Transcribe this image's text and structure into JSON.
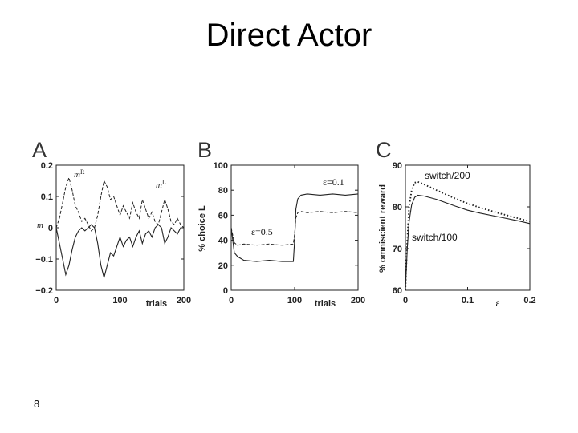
{
  "slide": {
    "title": "Direct Actor",
    "page_number": "8"
  },
  "chart_data": [
    {
      "panel": "A",
      "type": "line",
      "xlabel": "trials",
      "ylabel": "m",
      "xlim": [
        0,
        200
      ],
      "ylim": [
        -0.2,
        0.2
      ],
      "xticks": [
        "0",
        "100",
        "200"
      ],
      "yticks": [
        "0.2",
        "0.1",
        "0",
        "−0.1",
        "−0.2"
      ],
      "grid": false,
      "legend": "none",
      "series": [
        {
          "name": "m^R",
          "style": "dashed",
          "x": [
            0,
            5,
            10,
            15,
            20,
            25,
            30,
            35,
            40,
            45,
            50,
            55,
            60,
            65,
            70,
            75,
            80,
            85,
            90,
            95,
            100,
            105,
            110,
            115,
            120,
            125,
            130,
            135,
            140,
            145,
            150,
            155,
            160,
            165,
            170,
            175,
            180,
            185,
            190,
            195,
            200
          ],
          "y": [
            0.0,
            0.03,
            0.08,
            0.13,
            0.16,
            0.12,
            0.07,
            0.05,
            0.02,
            0.03,
            0.01,
            -0.01,
            0.0,
            0.04,
            0.1,
            0.15,
            0.13,
            0.09,
            0.1,
            0.07,
            0.04,
            0.07,
            0.05,
            0.03,
            0.08,
            0.05,
            0.03,
            0.09,
            0.06,
            0.03,
            0.05,
            0.02,
            0.01,
            0.05,
            0.09,
            0.06,
            0.02,
            0.01,
            0.03,
            0.01,
            0.0
          ]
        },
        {
          "name": "m^L",
          "style": "solid",
          "x": [
            0,
            5,
            10,
            15,
            20,
            25,
            30,
            35,
            40,
            45,
            50,
            55,
            60,
            65,
            70,
            75,
            80,
            85,
            90,
            95,
            100,
            105,
            110,
            115,
            120,
            125,
            130,
            135,
            140,
            145,
            150,
            155,
            160,
            165,
            170,
            175,
            180,
            185,
            190,
            195,
            200
          ],
          "y": [
            0.0,
            -0.05,
            -0.1,
            -0.15,
            -0.12,
            -0.07,
            -0.03,
            -0.01,
            0.0,
            -0.01,
            0.0,
            0.01,
            0.0,
            -0.05,
            -0.12,
            -0.16,
            -0.12,
            -0.08,
            -0.09,
            -0.06,
            -0.03,
            -0.06,
            -0.04,
            -0.03,
            -0.06,
            -0.03,
            -0.01,
            -0.05,
            -0.02,
            -0.01,
            -0.03,
            0.0,
            0.01,
            0.0,
            -0.05,
            -0.03,
            0.0,
            -0.01,
            -0.02,
            0.0,
            0.0
          ]
        }
      ]
    },
    {
      "panel": "B",
      "type": "line",
      "xlabel": "trials",
      "ylabel": "% choice L",
      "xlim": [
        0,
        200
      ],
      "ylim": [
        0,
        100
      ],
      "xticks": [
        "0",
        "100",
        "200"
      ],
      "yticks": [
        "100",
        "80",
        "60",
        "40",
        "20",
        "0"
      ],
      "grid": false,
      "legend": "none",
      "series": [
        {
          "name": "ε=0.5",
          "style": "dashed",
          "x": [
            0,
            5,
            10,
            20,
            40,
            60,
            80,
            98,
            100,
            102,
            105,
            110,
            120,
            140,
            160,
            180,
            200
          ],
          "y": [
            50,
            38,
            36,
            37,
            36,
            37,
            36,
            37,
            45,
            58,
            62,
            63,
            62,
            63,
            62,
            63,
            62
          ]
        },
        {
          "name": "ε=0.1",
          "style": "solid",
          "x": [
            0,
            5,
            10,
            20,
            40,
            60,
            80,
            98,
            100,
            102,
            105,
            110,
            120,
            140,
            160,
            180,
            200
          ],
          "y": [
            50,
            30,
            27,
            24,
            23,
            24,
            23,
            23,
            40,
            65,
            73,
            76,
            77,
            76,
            77,
            76,
            77
          ]
        }
      ]
    },
    {
      "panel": "C",
      "type": "line",
      "xlabel": "ε",
      "ylabel": "% omniscient reward",
      "xlim": [
        0,
        0.2
      ],
      "ylim": [
        60,
        90
      ],
      "xticks": [
        "0",
        "0.1",
        "0.2"
      ],
      "yticks": [
        "90",
        "80",
        "70",
        "60"
      ],
      "grid": false,
      "legend": "none",
      "series": [
        {
          "name": "switch/200",
          "style": "dotted",
          "x": [
            0,
            0.003,
            0.006,
            0.01,
            0.015,
            0.02,
            0.03,
            0.05,
            0.08,
            0.1,
            0.12,
            0.15,
            0.18,
            0.2
          ],
          "y": [
            60,
            72,
            80,
            84,
            85.8,
            86,
            85.4,
            84,
            82,
            80.8,
            79.8,
            78.5,
            77.3,
            76.5
          ]
        },
        {
          "name": "switch/100",
          "style": "solid",
          "x": [
            0,
            0.003,
            0.006,
            0.01,
            0.015,
            0.02,
            0.03,
            0.05,
            0.08,
            0.1,
            0.12,
            0.15,
            0.18,
            0.2
          ],
          "y": [
            60,
            70,
            76.5,
            80.5,
            82.3,
            82.8,
            82.6,
            81.8,
            80.2,
            79.2,
            78.5,
            77.6,
            76.7,
            76
          ]
        }
      ]
    }
  ]
}
